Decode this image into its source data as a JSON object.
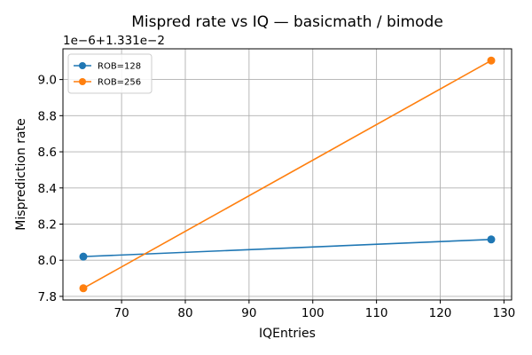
{
  "chart_data": {
    "type": "line",
    "title": "Mispred rate vs IQ — basicmath / bimode",
    "xlabel": "IQEntries",
    "ylabel": "Misprediction rate",
    "y_offset_label": "1e−6+1.331e−2",
    "x_ticks": [
      70,
      80,
      90,
      100,
      110,
      120,
      130
    ],
    "y_ticks": [
      7.8,
      8.0,
      8.2,
      8.4,
      8.6,
      8.8,
      9.0
    ],
    "y_tick_labels": [
      "7.8",
      "8.0",
      "8.2",
      "8.4",
      "8.6",
      "8.8",
      "9.0"
    ],
    "xlim": [
      60.8,
      131.2
    ],
    "ylim": [
      7.78,
      9.17
    ],
    "grid": true,
    "legend_position": "top-left",
    "series": [
      {
        "name": "ROB=128",
        "color": "#1f77b4",
        "x": [
          64,
          128
        ],
        "y": [
          8.02,
          8.115
        ]
      },
      {
        "name": "ROB=256",
        "color": "#ff7f0e",
        "x": [
          64,
          128
        ],
        "y": [
          7.845,
          9.105
        ]
      }
    ]
  }
}
